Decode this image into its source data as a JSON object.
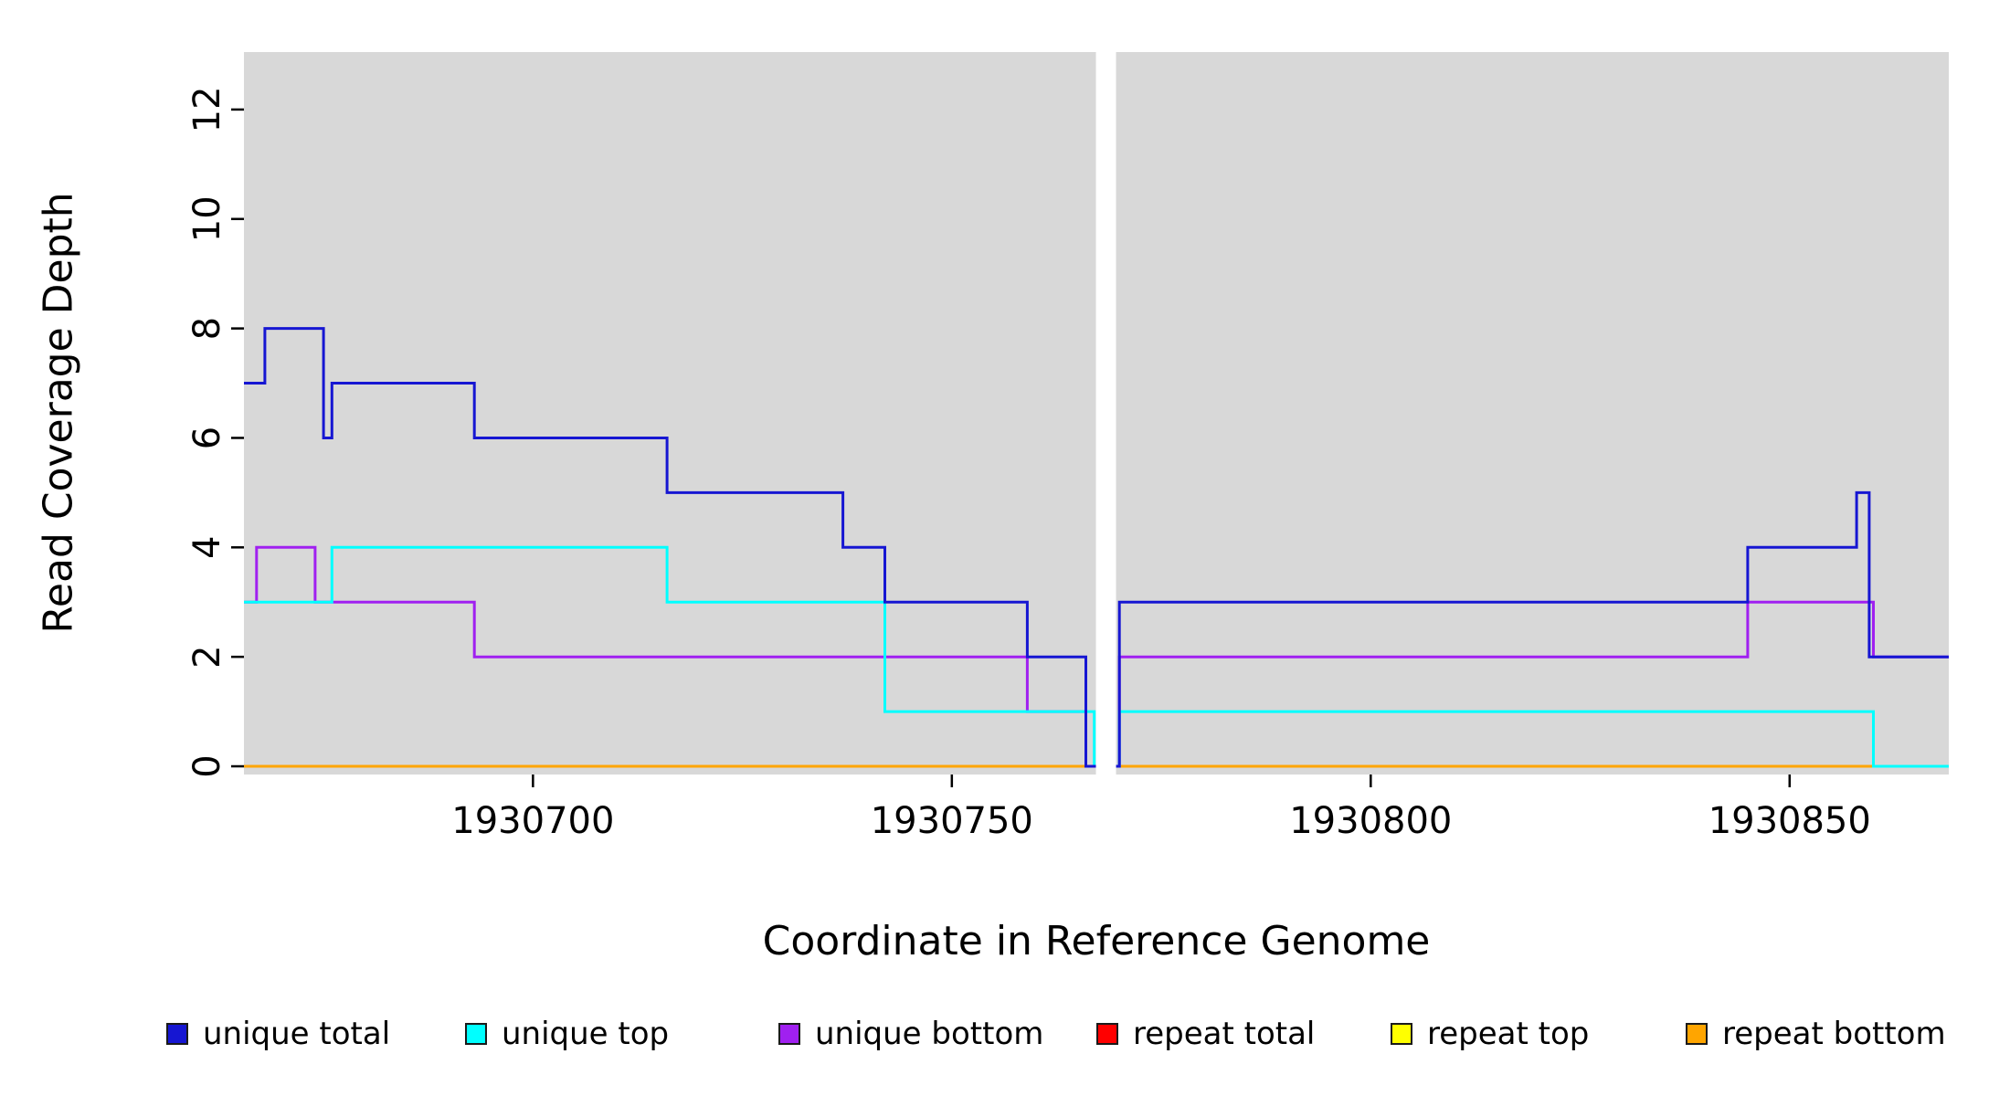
{
  "chart_data": {
    "type": "line",
    "title": "",
    "xlabel": "Coordinate in Reference Genome",
    "ylabel": "Read Coverage Depth",
    "x_ticks": [
      1930700,
      1930750,
      1930800,
      1930850
    ],
    "y_ticks": [
      0,
      2,
      4,
      6,
      8,
      10,
      12
    ],
    "xlim": [
      1930665.5,
      1930869
    ],
    "ylim": [
      -0.15,
      13.05
    ],
    "plot_bg": "#d8d8d8",
    "gap_x": [
      1930767.2,
      1930769.6
    ],
    "grid": false,
    "legend_position": "bottom",
    "step_mode": "step-after",
    "series": [
      {
        "name": "repeat total",
        "color": "#ff0000",
        "points": [
          [
            1930665.5,
            0
          ]
        ]
      },
      {
        "name": "repeat top",
        "color": "#ffff00",
        "points": [
          [
            1930665.5,
            0
          ]
        ]
      },
      {
        "name": "repeat bottom",
        "color": "#ffa500",
        "points": [
          [
            1930665.5,
            0
          ]
        ]
      },
      {
        "name": "unique bottom",
        "color": "#a020f0",
        "points": [
          [
            1930665.5,
            3
          ],
          [
            1930667,
            4
          ],
          [
            1930674,
            3
          ],
          [
            1930693,
            2
          ],
          [
            1930759,
            1
          ],
          [
            1930766,
            0
          ],
          [
            1930770,
            2
          ],
          [
            1930845,
            3
          ],
          [
            1930860,
            2
          ]
        ]
      },
      {
        "name": "unique top",
        "color": "#00ffff",
        "points": [
          [
            1930665.5,
            3
          ],
          [
            1930676,
            4
          ],
          [
            1930716,
            3
          ],
          [
            1930742,
            1
          ],
          [
            1930767,
            0
          ],
          [
            1930770,
            1
          ],
          [
            1930860,
            0
          ]
        ]
      },
      {
        "name": "unique total",
        "color": "#1616d2",
        "points": [
          [
            1930665.5,
            7
          ],
          [
            1930668,
            8
          ],
          [
            1930675,
            6
          ],
          [
            1930676,
            7
          ],
          [
            1930693,
            6
          ],
          [
            1930716,
            5
          ],
          [
            1930737,
            4
          ],
          [
            1930742,
            3
          ],
          [
            1930759,
            2
          ],
          [
            1930766,
            0
          ],
          [
            1930770,
            3
          ],
          [
            1930845,
            4
          ],
          [
            1930858,
            5
          ],
          [
            1930859.5,
            2
          ]
        ]
      }
    ],
    "legend": [
      {
        "label": "unique total",
        "color": "#1616d2"
      },
      {
        "label": "unique top",
        "color": "#00ffff"
      },
      {
        "label": "unique bottom",
        "color": "#a020f0"
      },
      {
        "label": "repeat total",
        "color": "#ff0000"
      },
      {
        "label": "repeat top",
        "color": "#ffff00"
      },
      {
        "label": "repeat bottom",
        "color": "#ffa500"
      }
    ]
  }
}
